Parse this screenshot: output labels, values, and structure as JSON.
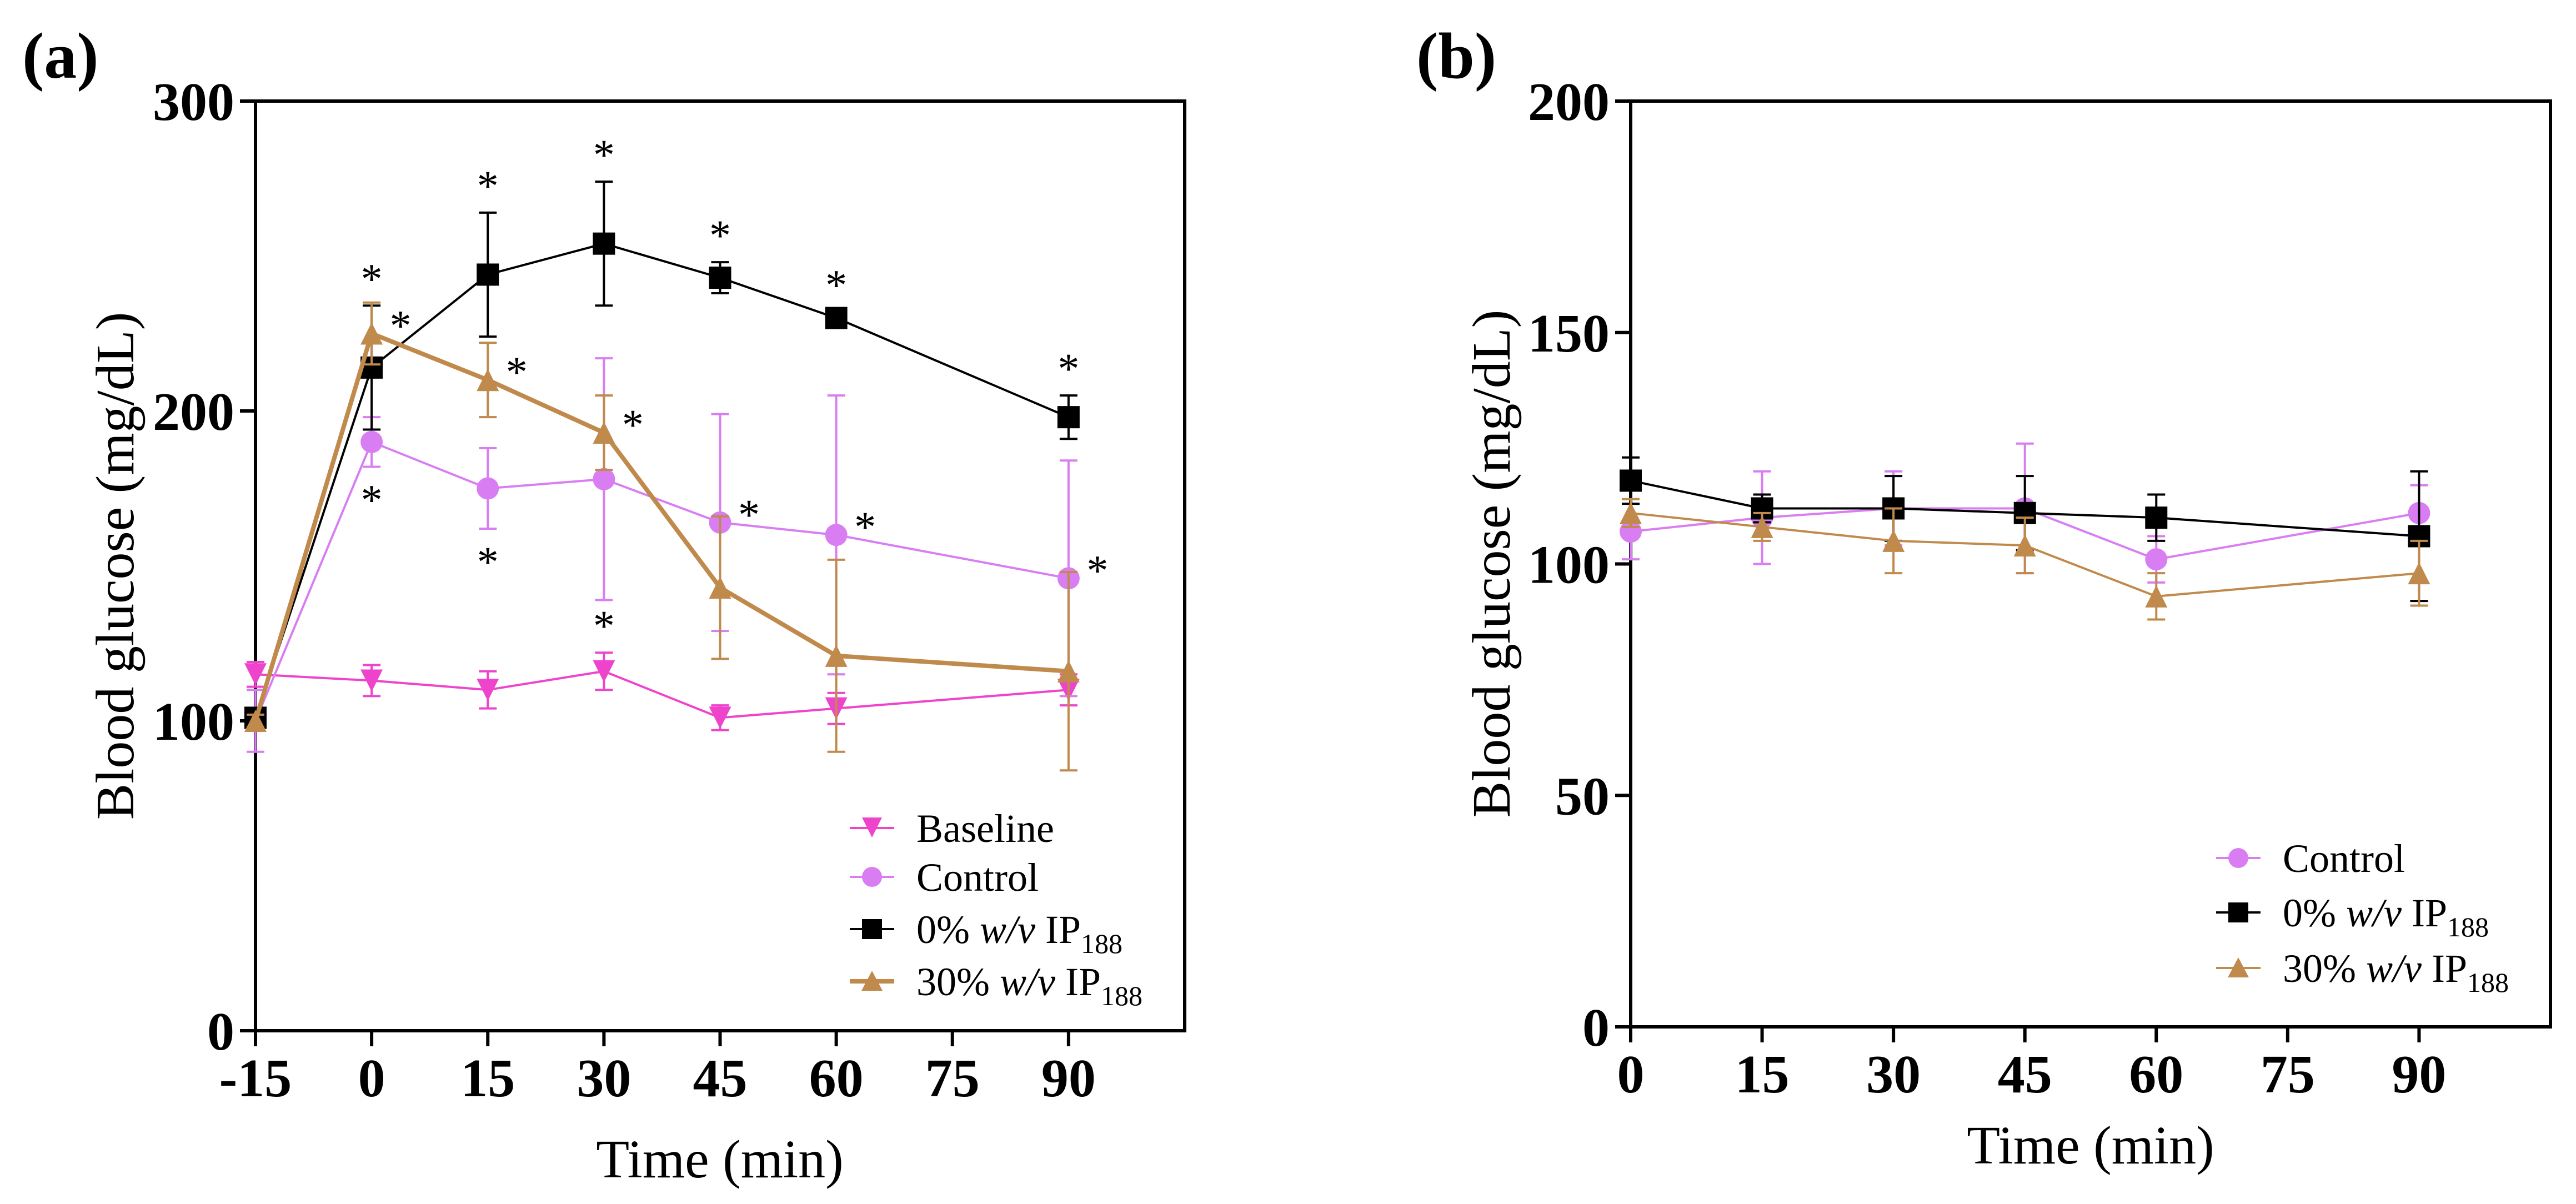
{
  "colors": {
    "baseline": "#ee44cc",
    "control": "#d97ef2",
    "ip0": "#000000",
    "ip30": "#c08a4c"
  },
  "chart_data": [
    {
      "type": "line",
      "panel_label": "(a)",
      "title": "",
      "xlabel": "Time (min)",
      "ylabel": "Blood glucose (mg/dL)",
      "xlim": [
        -15,
        105
      ],
      "ylim": [
        0,
        300
      ],
      "xticks": [
        -15,
        0,
        15,
        30,
        45,
        60,
        75,
        90
      ],
      "xtick_labels": [
        "-15",
        "0",
        "15",
        "30",
        "45",
        "60",
        "75",
        "90"
      ],
      "yticks": [
        0,
        100,
        200,
        300
      ],
      "ytick_labels": [
        "0",
        "100",
        "200",
        "300"
      ],
      "legend_position": "bottom-right",
      "grid": false,
      "series": [
        {
          "key": "baseline",
          "name": "Baseline",
          "marker": "triangle-down",
          "line_width": "thin",
          "x": [
            -15,
            0,
            15,
            30,
            45,
            60,
            90
          ],
          "y": [
            115,
            113,
            110,
            116,
            101,
            104,
            110
          ],
          "err": [
            4,
            5,
            6,
            6,
            4,
            5,
            5
          ],
          "err_dir": "both",
          "asterisks": [
            {
              "x": 30,
              "label": "*",
              "position": "above"
            }
          ]
        },
        {
          "key": "control",
          "name": "Control",
          "marker": "circle",
          "line_width": "thin",
          "x": [
            -15,
            0,
            15,
            30,
            45,
            60,
            90
          ],
          "y": [
            100,
            190,
            175,
            178,
            164,
            160,
            146
          ],
          "err": [
            10,
            8,
            13,
            39,
            35,
            45,
            38
          ],
          "err_dir": "both",
          "asterisks": [
            {
              "x": 0,
              "label": "*",
              "position": "below"
            },
            {
              "x": 15,
              "label": "*",
              "position": "below"
            },
            {
              "x": 45,
              "label": "*",
              "position": "right"
            },
            {
              "x": 60,
              "label": "*",
              "position": "right"
            },
            {
              "x": 90,
              "label": "*",
              "position": "right"
            }
          ]
        },
        {
          "key": "ip0",
          "name_prefix": "0% ",
          "name_italic": "w/v",
          "name_suffix": " IP",
          "name_sub": "188",
          "marker": "square",
          "line_width": "thin",
          "x": [
            -15,
            0,
            15,
            30,
            45,
            60,
            90
          ],
          "y": [
            101,
            214,
            244,
            254,
            243,
            230,
            198
          ],
          "err": [
            2,
            20,
            20,
            20,
            5,
            2,
            7
          ],
          "err_dir": "both",
          "asterisks": [
            {
              "x": 0,
              "label": "*",
              "position": "above"
            },
            {
              "x": 15,
              "label": "*",
              "position": "above"
            },
            {
              "x": 30,
              "label": "*",
              "position": "above"
            },
            {
              "x": 45,
              "label": "*",
              "position": "above"
            },
            {
              "x": 60,
              "label": "*",
              "position": "above"
            },
            {
              "x": 90,
              "label": "*",
              "position": "above"
            }
          ]
        },
        {
          "key": "ip30",
          "name_prefix": "30% ",
          "name_italic": "w/v",
          "name_suffix": " IP",
          "name_sub": "188",
          "marker": "triangle-up",
          "line_width": "thick",
          "x": [
            -15,
            0,
            15,
            30,
            45,
            60,
            90
          ],
          "y": [
            100,
            225,
            210,
            193,
            143,
            121,
            116
          ],
          "err": [
            2,
            10,
            12,
            12,
            23,
            31,
            32
          ],
          "err_dir": "both",
          "asterisks": [
            {
              "x": 0,
              "label": "*",
              "position": "right"
            },
            {
              "x": 15,
              "label": "*",
              "position": "right"
            },
            {
              "x": 30,
              "label": "*",
              "position": "right"
            }
          ]
        }
      ],
      "legend_order": [
        "baseline",
        "control",
        "ip0",
        "ip30"
      ]
    },
    {
      "type": "line",
      "panel_label": "(b)",
      "title": "",
      "xlabel": "Time (min)",
      "ylabel": "Blood glucose (mg/dL)",
      "xlim": [
        0,
        105
      ],
      "ylim": [
        0,
        200
      ],
      "xticks": [
        0,
        15,
        30,
        45,
        60,
        75,
        90
      ],
      "xtick_labels": [
        "0",
        "15",
        "30",
        "45",
        "60",
        "75",
        "90"
      ],
      "yticks": [
        0,
        50,
        100,
        150,
        200
      ],
      "ytick_labels": [
        "0",
        "50",
        "100",
        "150",
        "200"
      ],
      "legend_position": "bottom-right",
      "grid": false,
      "series": [
        {
          "key": "control",
          "name": "Control",
          "marker": "circle",
          "line_width": "thin",
          "x": [
            0,
            15,
            30,
            45,
            60,
            90
          ],
          "y": [
            107,
            110,
            112,
            112,
            101,
            111
          ],
          "err": [
            6,
            10,
            8,
            14,
            5,
            6
          ],
          "err_dir": "both",
          "asterisks": []
        },
        {
          "key": "ip0",
          "name_prefix": "0% ",
          "name_italic": "w/v",
          "name_suffix": " IP",
          "name_sub": "188",
          "marker": "square",
          "line_width": "thin",
          "x": [
            0,
            15,
            30,
            45,
            60,
            90
          ],
          "y": [
            118,
            112,
            112,
            111,
            110,
            106
          ],
          "err": [
            5,
            3,
            7,
            8,
            5,
            14
          ],
          "err_dir": "both",
          "asterisks": []
        },
        {
          "key": "ip30",
          "name_prefix": "30% ",
          "name_italic": "w/v",
          "name_suffix": " IP",
          "name_sub": "188",
          "marker": "triangle-up",
          "line_width": "thin",
          "x": [
            0,
            15,
            30,
            45,
            60,
            90
          ],
          "y": [
            111,
            108,
            105,
            104,
            93,
            98
          ],
          "err": [
            3,
            3,
            7,
            6,
            5,
            7
          ],
          "err_dir": "both",
          "asterisks": []
        }
      ],
      "legend_order": [
        "control",
        "ip0",
        "ip30"
      ]
    }
  ]
}
